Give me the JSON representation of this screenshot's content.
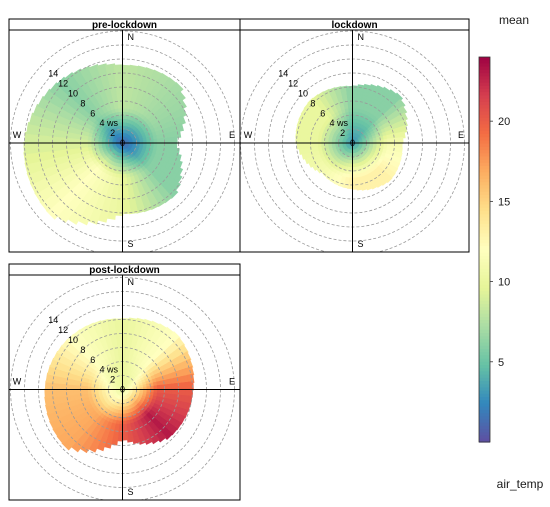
{
  "chart_data": {
    "type": "heatmap",
    "subtype": "polar-plot",
    "x_variable": "wind direction",
    "radial_variable": "ws",
    "radial_unit_label": "ws",
    "radial_ticks": [
      0,
      2,
      4,
      6,
      8,
      10,
      12,
      14
    ],
    "radial_range": [
      0,
      16
    ],
    "compass_labels": [
      "N",
      "E",
      "S",
      "W"
    ],
    "panels": [
      {
        "title": "pre-lockdown",
        "max_ws_by_direction": {
          "N": 11.0,
          "NE": 11.5,
          "E": 7.5,
          "SE": 10.5,
          "S": 10.0,
          "SW": 14.5,
          "W": 14.0,
          "NW": 12.5
        },
        "mean_by_direction": {
          "N": 8,
          "NE": 7,
          "E": 6,
          "SE": 6,
          "S": 10,
          "SW": 12,
          "W": 9,
          "NW": 6
        },
        "center_value": 1
      },
      {
        "title": "lockdown",
        "max_ws_by_direction": {
          "N": 8.0,
          "NE": 9.5,
          "E": 7.0,
          "SE": 7.5,
          "S": 6.5,
          "SW": 6.0,
          "W": 8.0,
          "NW": 8.5
        },
        "mean_by_direction": {
          "N": 6,
          "NE": 6,
          "E": 11,
          "SE": 13,
          "S": 13,
          "SW": 11,
          "W": 10,
          "NW": 10
        },
        "center_value": 3
      },
      {
        "title": "post-lockdown",
        "max_ws_by_direction": {
          "N": 10.0,
          "NE": 11.0,
          "E": 10.0,
          "SE": 9.5,
          "S": 7.0,
          "SW": 11.5,
          "W": 11.0,
          "NW": 10.5
        },
        "mean_by_direction": {
          "N": 10,
          "NE": 12,
          "E": 20,
          "SE": 23,
          "S": 20,
          "SW": 17,
          "W": 16,
          "NW": 12
        },
        "center_value": 10
      }
    ],
    "colorbar": {
      "title": "mean",
      "caption": "air_temp",
      "range": [
        0,
        24
      ],
      "ticks": [
        5,
        10,
        15,
        20
      ],
      "colors": [
        "#5e4fa2",
        "#3288bd",
        "#66c2a5",
        "#abdda4",
        "#e6f598",
        "#ffffbf",
        "#fee08b",
        "#fdae61",
        "#f46d43",
        "#d53e4f",
        "#9e0142"
      ]
    },
    "grid": true,
    "legend_position": "right"
  }
}
